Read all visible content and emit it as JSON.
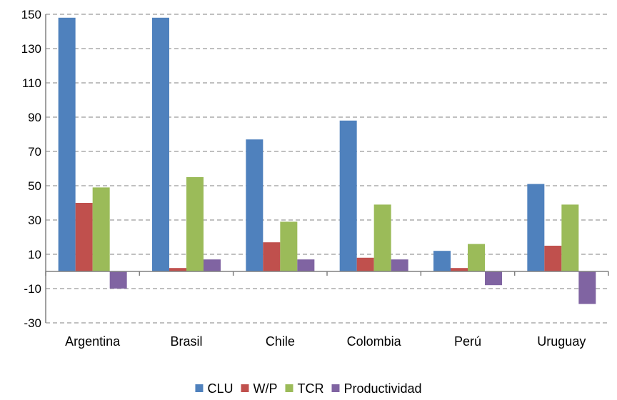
{
  "chart_data": {
    "type": "bar",
    "categories": [
      "Argentina",
      "Brasil",
      "Chile",
      "Colombia",
      "Perú",
      "Uruguay"
    ],
    "series": [
      {
        "name": "CLU",
        "color": "#4F81BD",
        "values": [
          148,
          148,
          77,
          88,
          12,
          51
        ]
      },
      {
        "name": "W/P",
        "color": "#C0504D",
        "values": [
          40,
          2,
          17,
          8,
          2,
          15
        ]
      },
      {
        "name": "TCR",
        "color": "#9BBB59",
        "values": [
          49,
          55,
          29,
          39,
          16,
          39
        ]
      },
      {
        "name": "Productividad",
        "color": "#8064A2",
        "values": [
          -10,
          7,
          7,
          7,
          -8,
          -19
        ]
      }
    ],
    "yticks": [
      -30,
      -10,
      10,
      30,
      50,
      70,
      90,
      110,
      130,
      150
    ],
    "ylim": [
      -30,
      150
    ],
    "grid": true,
    "legend_position": "bottom"
  }
}
